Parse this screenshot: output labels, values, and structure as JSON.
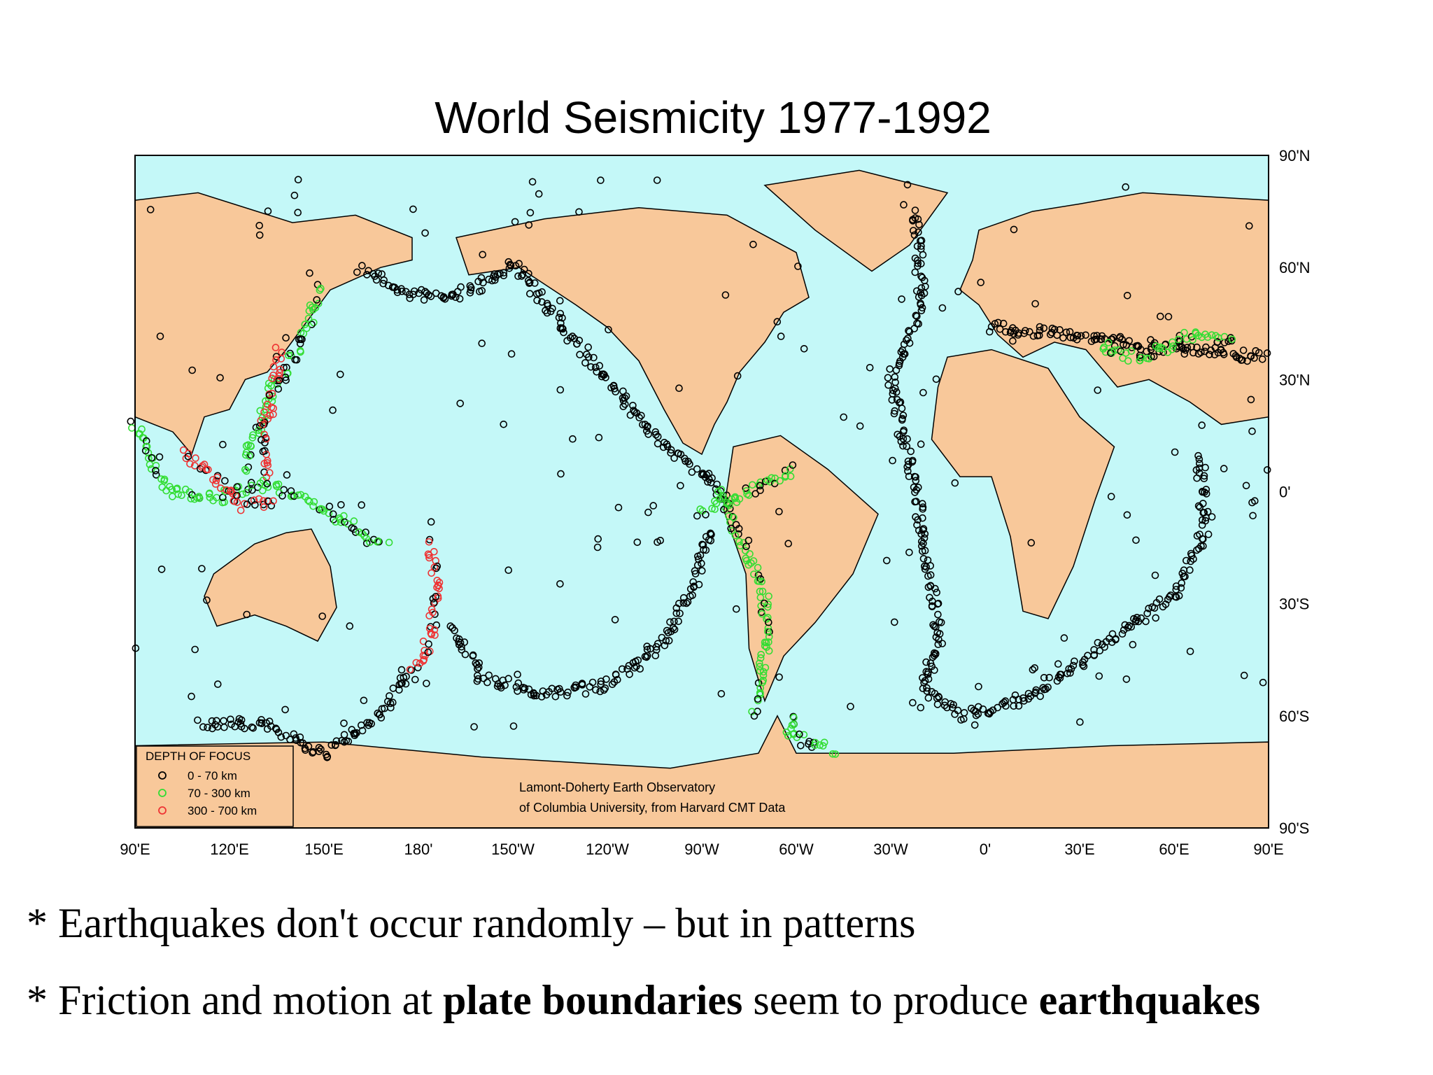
{
  "title": "World Seismicity 1977-1992",
  "map": {
    "latitude_labels": [
      "90'N",
      "60'N",
      "30'N",
      "0'",
      "30'S",
      "60'S",
      "90'S"
    ],
    "longitude_labels": [
      "90'E",
      "120'E",
      "150'E",
      "180'",
      "150'W",
      "120'W",
      "90'W",
      "60'W",
      "30'W",
      "0'",
      "30'E",
      "60'E",
      "90'E"
    ],
    "legend": {
      "title": "DEPTH OF FOCUS",
      "items": [
        {
          "label": "0 - 70 km",
          "color": "#000000"
        },
        {
          "label": "70 - 300 km",
          "color": "#33dd33"
        },
        {
          "label": "300 - 700 km",
          "color": "#ee3333"
        }
      ]
    },
    "credit": [
      "Lamont-Doherty Earth Observatory",
      "of Columbia University, from Harvard CMT Data"
    ]
  },
  "bullets": [
    [
      {
        "text": "* Earthquakes don't occur randomly – but in patterns"
      }
    ],
    [
      {
        "text": "* Friction and motion at "
      },
      {
        "text": "plate boundaries",
        "bold": true
      },
      {
        "text": " seem to produce "
      },
      {
        "text": "earthquakes",
        "bold": true
      }
    ]
  ]
}
